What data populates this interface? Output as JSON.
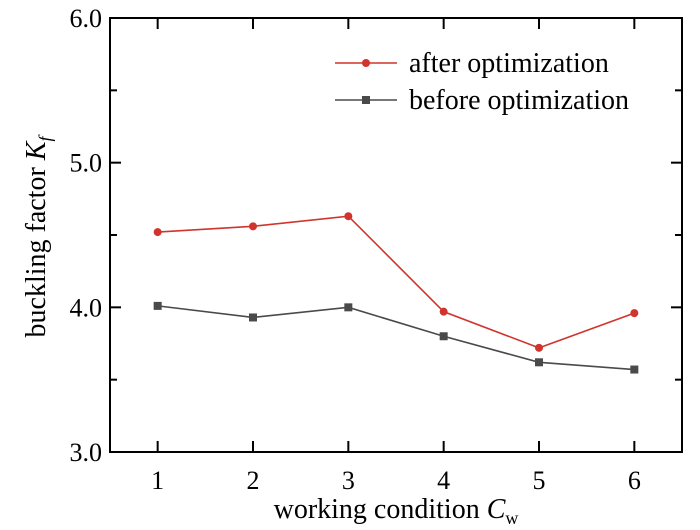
{
  "chart_data": {
    "type": "line",
    "x": [
      1,
      2,
      3,
      4,
      5,
      6
    ],
    "categories": [
      "1",
      "2",
      "3",
      "4",
      "5",
      "6"
    ],
    "series": [
      {
        "name": "after optimization",
        "values": [
          4.52,
          4.56,
          4.63,
          3.97,
          3.72,
          3.96
        ],
        "color": "#d0342c",
        "marker": "circle"
      },
      {
        "name": "before optimization",
        "values": [
          4.01,
          3.93,
          4.0,
          3.8,
          3.62,
          3.57
        ],
        "color": "#4a4a4a",
        "marker": "square"
      }
    ],
    "ylim": [
      3.0,
      6.0
    ],
    "xlim": [
      0.5,
      6.5
    ],
    "yticks": [
      "3.0",
      "4.0",
      "5.0",
      "6.0"
    ],
    "ytick_values": [
      3.0,
      4.0,
      5.0,
      6.0
    ],
    "xlabel": {
      "prefix": "working condition ",
      "var": "C",
      "sub": "w"
    },
    "ylabel": {
      "prefix": "buckling factor ",
      "var": "K",
      "sub": "f"
    },
    "grid": false,
    "legend_position": "top-right"
  }
}
